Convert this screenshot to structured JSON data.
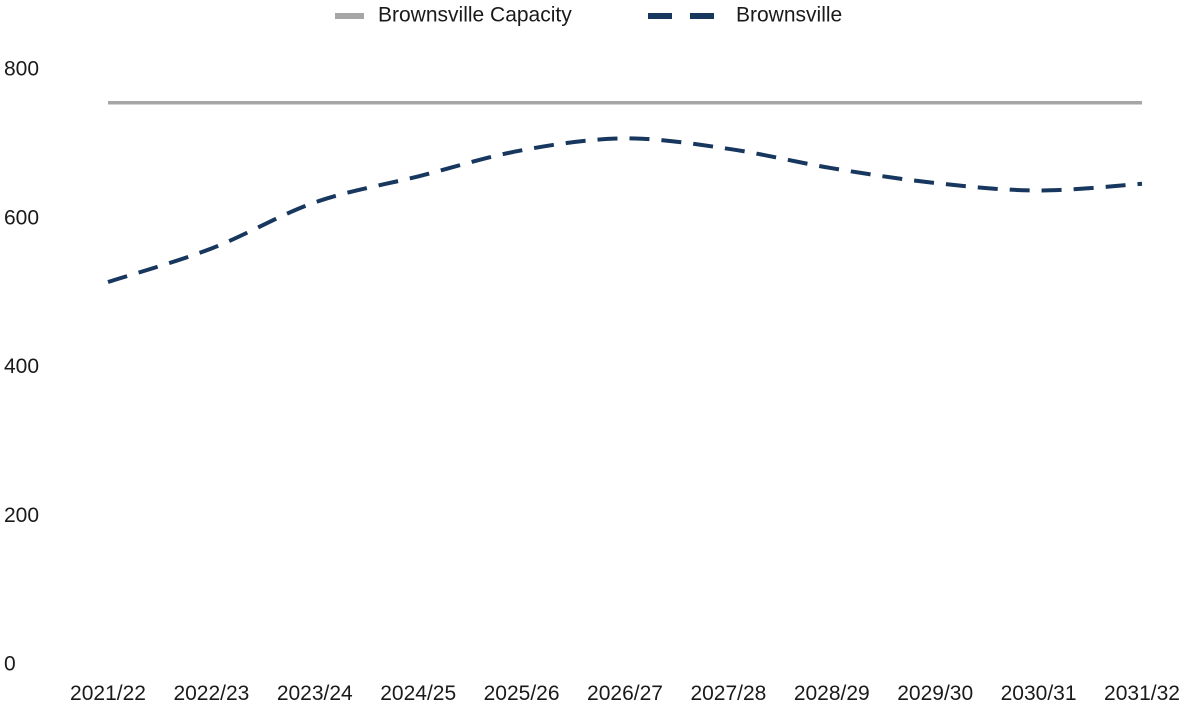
{
  "chart_data": {
    "type": "line",
    "categories": [
      "2021/22",
      "2022/23",
      "2023/24",
      "2024/25",
      "2025/26",
      "2026/27",
      "2027/28",
      "2028/29",
      "2029/30",
      "2030/31",
      "2031/32"
    ],
    "series": [
      {
        "name": "Brownsville Capacity",
        "values": [
          756,
          756,
          756,
          756,
          756,
          756,
          756,
          756,
          756,
          756,
          756
        ],
        "color": "#a6a6a6",
        "style": "solid"
      },
      {
        "name": "Brownsville",
        "values": [
          515,
          560,
          622,
          657,
          692,
          708,
          694,
          668,
          648,
          638,
          647
        ],
        "color": "#17375e",
        "style": "dashed"
      }
    ],
    "yticks": [
      0,
      200,
      400,
      600,
      800
    ],
    "ylim": [
      0,
      800
    ],
    "title": "",
    "xlabel": "",
    "ylabel": "",
    "grid": false,
    "legend_position": "top"
  }
}
